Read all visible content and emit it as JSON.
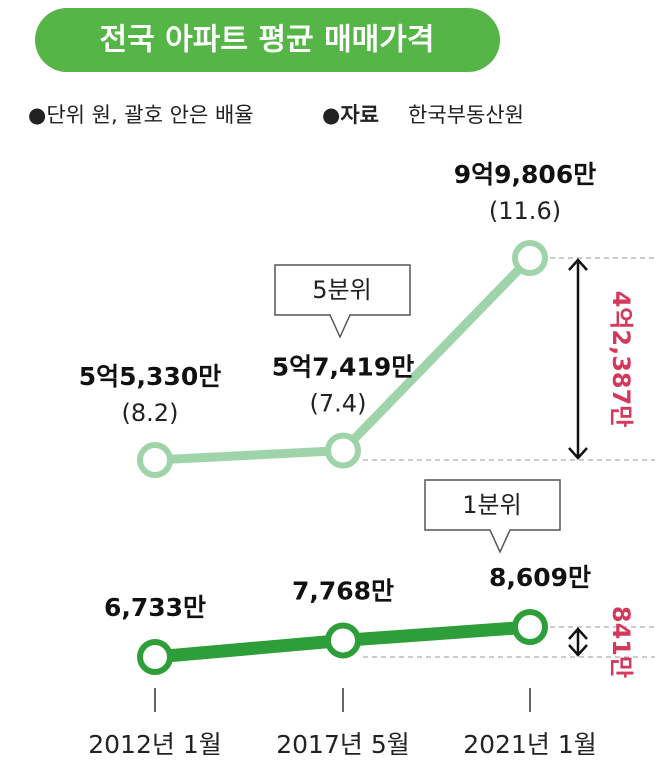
{
  "chart_data": {
    "type": "line",
    "title": "전국 아파트 평균 매매가격",
    "note": "●단위 원, 괄호 안은 배율",
    "source_label": "●자료",
    "source": "한국부동산원",
    "categories": [
      "2012년 1월",
      "2017년 5월",
      "2021년 1월"
    ],
    "series": [
      {
        "name": "5분위",
        "color": "#9fd3a9",
        "values": [
          55330,
          57419,
          99806
        ],
        "value_labels": [
          "5억5,330만",
          "5억7,419만",
          "9억9,806만"
        ],
        "ratios": [
          8.2,
          7.4,
          11.6
        ],
        "ratio_labels": [
          "(8.2)",
          "(7.4)",
          "(11.6)"
        ],
        "difference": 42387,
        "difference_label": "4억2,387만"
      },
      {
        "name": "1분위",
        "color": "#2e9e3a",
        "values": [
          6733,
          7768,
          8609
        ],
        "value_labels": [
          "6,733만",
          "7,768만",
          "8,609만"
        ],
        "difference": 841,
        "difference_label": "841만"
      }
    ]
  }
}
